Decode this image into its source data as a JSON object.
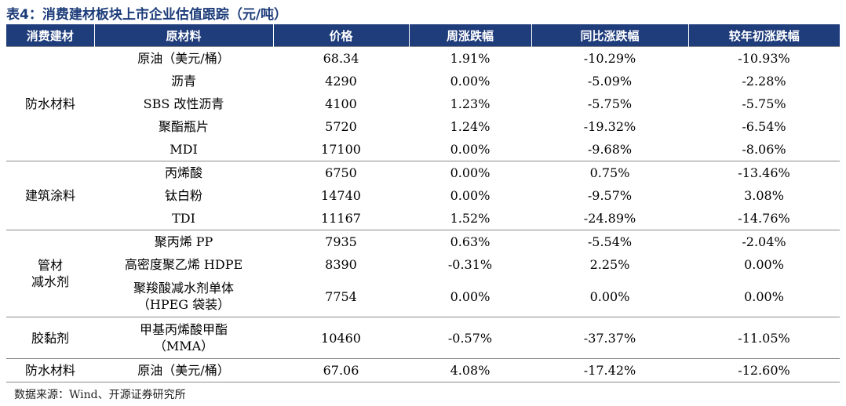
{
  "title": "表4：消费建材板块上市企业估值跟踪（元/吨）",
  "headers": [
    "消费建材",
    "原材料",
    "价格",
    "周涨跌幅",
    "同比涨跌幅",
    "较年初涨跌幅"
  ],
  "groups": [
    {
      "category": [
        "防水材料"
      ],
      "rows": [
        {
          "material": [
            "原油（美元/桶）"
          ],
          "price": "68.34",
          "week": "1.91%",
          "yoy": "-10.29%",
          "ytd": "-10.93%"
        },
        {
          "material": [
            "沥青"
          ],
          "price": "4290",
          "week": "0.00%",
          "yoy": "-5.09%",
          "ytd": "-2.28%"
        },
        {
          "material": [
            "SBS 改性沥青"
          ],
          "price": "4100",
          "week": "1.23%",
          "yoy": "-5.75%",
          "ytd": "-5.75%"
        },
        {
          "material": [
            "聚酯瓶片"
          ],
          "price": "5720",
          "week": "1.24%",
          "yoy": "-19.32%",
          "ytd": "-6.54%"
        },
        {
          "material": [
            "MDI"
          ],
          "price": "17100",
          "week": "0.00%",
          "yoy": "-9.68%",
          "ytd": "-8.06%"
        }
      ]
    },
    {
      "category": [
        "建筑涂料"
      ],
      "rows": [
        {
          "material": [
            "丙烯酸"
          ],
          "price": "6750",
          "week": "0.00%",
          "yoy": "0.75%",
          "ytd": "-13.46%"
        },
        {
          "material": [
            "钛白粉"
          ],
          "price": "14740",
          "week": "0.00%",
          "yoy": "-9.57%",
          "ytd": "3.08%"
        },
        {
          "material": [
            "TDI"
          ],
          "price": "11167",
          "week": "1.52%",
          "yoy": "-24.89%",
          "ytd": "-14.76%"
        }
      ]
    },
    {
      "category": [
        "管材",
        "减水剂"
      ],
      "rows": [
        {
          "material": [
            "聚丙烯 PP"
          ],
          "price": "7935",
          "week": "0.63%",
          "yoy": "-5.54%",
          "ytd": "-2.04%"
        },
        {
          "material": [
            "高密度聚乙烯 HDPE"
          ],
          "price": "8390",
          "week": "-0.31%",
          "yoy": "2.25%",
          "ytd": "0.00%"
        },
        {
          "material": [
            "聚羧酸减水剂单体",
            "（HPEG 袋装）"
          ],
          "price": "7754",
          "week": "0.00%",
          "yoy": "0.00%",
          "ytd": "0.00%"
        }
      ]
    },
    {
      "category": [
        "胶黏剂"
      ],
      "rows": [
        {
          "material": [
            "甲基丙烯酸甲酯",
            "（MMA）"
          ],
          "price": "10460",
          "week": "-0.57%",
          "yoy": "-37.37%",
          "ytd": "-11.05%"
        }
      ]
    },
    {
      "category": [
        "防水材料"
      ],
      "rows": [
        {
          "material": [
            "原油（美元/桶）"
          ],
          "price": "67.06",
          "week": "4.08%",
          "yoy": "-17.42%",
          "ytd": "-12.60%"
        }
      ]
    }
  ],
  "source": "数据来源：Wind、开源证券研究所",
  "colors": {
    "header_bg": "#1f3c7b",
    "title": "#1d3c7a"
  }
}
